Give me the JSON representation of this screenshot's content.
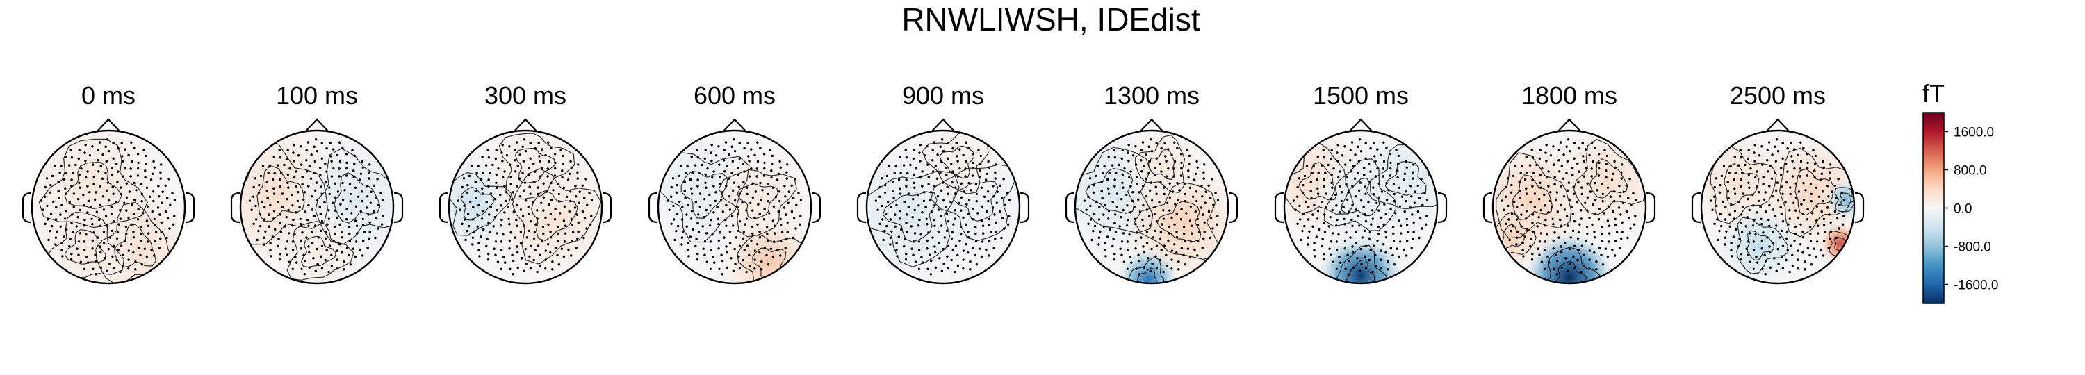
{
  "chart_data": {
    "type": "heatmap",
    "title": "RNWLIWSH, IDEdist",
    "panels": [
      {
        "time": "0 ms",
        "blobs": [
          {
            "x": -0.2,
            "y": 0.25,
            "v": 250,
            "r": 0.55
          },
          {
            "x": 0.35,
            "y": -0.55,
            "v": 350,
            "r": 0.45
          },
          {
            "x": -0.3,
            "y": -0.55,
            "v": 200,
            "r": 0.4
          }
        ]
      },
      {
        "time": "100 ms",
        "blobs": [
          {
            "x": -0.5,
            "y": 0.15,
            "v": 350,
            "r": 0.55
          },
          {
            "x": 0.5,
            "y": 0.1,
            "v": -250,
            "r": 0.5
          },
          {
            "x": 0.0,
            "y": -0.6,
            "v": 150,
            "r": 0.35
          }
        ]
      },
      {
        "time": "300 ms",
        "blobs": [
          {
            "x": -0.65,
            "y": 0.05,
            "v": -420,
            "r": 0.35
          },
          {
            "x": 0.35,
            "y": -0.1,
            "v": 300,
            "r": 0.5
          },
          {
            "x": 0.1,
            "y": 0.55,
            "v": 150,
            "r": 0.4
          }
        ]
      },
      {
        "time": "600 ms",
        "blobs": [
          {
            "x": -0.4,
            "y": 0.2,
            "v": -200,
            "r": 0.5
          },
          {
            "x": 0.3,
            "y": 0.1,
            "v": 200,
            "r": 0.4
          },
          {
            "x": 0.45,
            "y": -0.72,
            "v": 550,
            "r": 0.35
          }
        ]
      },
      {
        "time": "900 ms",
        "blobs": [
          {
            "x": -0.4,
            "y": -0.1,
            "v": -280,
            "r": 0.55
          },
          {
            "x": 0.45,
            "y": 0.1,
            "v": -150,
            "r": 0.45
          },
          {
            "x": 0.2,
            "y": 0.6,
            "v": 120,
            "r": 0.35
          }
        ]
      },
      {
        "time": "1300 ms",
        "blobs": [
          {
            "x": -0.5,
            "y": 0.2,
            "v": -300,
            "r": 0.5
          },
          {
            "x": 0.4,
            "y": -0.2,
            "v": 480,
            "r": 0.45
          },
          {
            "x": -0.05,
            "y": -0.95,
            "v": -1500,
            "r": 0.22
          },
          {
            "x": 0.15,
            "y": 0.55,
            "v": 220,
            "r": 0.3
          }
        ]
      },
      {
        "time": "1500 ms",
        "blobs": [
          {
            "x": -0.55,
            "y": 0.3,
            "v": 400,
            "r": 0.4
          },
          {
            "x": 0.6,
            "y": 0.35,
            "v": -300,
            "r": 0.4
          },
          {
            "x": 0.0,
            "y": -0.9,
            "v": -1900,
            "r": 0.3
          },
          {
            "x": 0.0,
            "y": 0.1,
            "v": -200,
            "r": 0.4
          }
        ]
      },
      {
        "time": "1800 ms",
        "blobs": [
          {
            "x": -0.5,
            "y": 0.1,
            "v": 450,
            "r": 0.45
          },
          {
            "x": 0.5,
            "y": 0.35,
            "v": 350,
            "r": 0.4
          },
          {
            "x": 0.0,
            "y": -0.92,
            "v": -2200,
            "r": 0.32
          },
          {
            "x": -0.75,
            "y": -0.4,
            "v": 500,
            "r": 0.25
          }
        ]
      },
      {
        "time": "2500 ms",
        "blobs": [
          {
            "x": -0.5,
            "y": 0.3,
            "v": 300,
            "r": 0.4
          },
          {
            "x": 0.45,
            "y": 0.2,
            "v": 420,
            "r": 0.45
          },
          {
            "x": -0.25,
            "y": -0.5,
            "v": -500,
            "r": 0.3
          },
          {
            "x": 0.9,
            "y": 0.1,
            "v": -900,
            "r": 0.15
          },
          {
            "x": 0.82,
            "y": -0.48,
            "v": 1300,
            "r": 0.15
          }
        ]
      }
    ],
    "colorbar": {
      "unit": "fT",
      "range": [
        -2000,
        2000
      ],
      "ticks": [
        "1600.0",
        "800.0",
        "0.0",
        "-800.0",
        "-1600.0"
      ],
      "tick_values": [
        1600,
        800,
        0,
        -800,
        -1600
      ],
      "colors": [
        "#67001f",
        "#b2182b",
        "#d6604d",
        "#f4a582",
        "#fddbc7",
        "#f7f7f7",
        "#d1e5f0",
        "#92c5de",
        "#4393c3",
        "#2166ac",
        "#053061"
      ]
    }
  }
}
